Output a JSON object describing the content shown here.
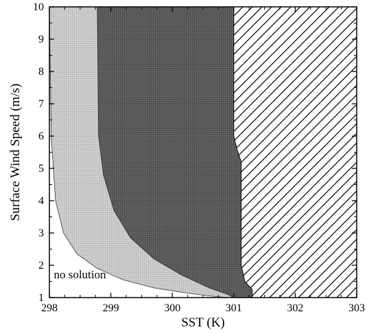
{
  "chart_data": {
    "type": "area",
    "xlabel": "SST (K)",
    "ylabel": "Surface Wind Speed (m/s)",
    "xlim": [
      298,
      303
    ],
    "ylim": [
      1,
      10
    ],
    "x_ticks": [
      "298",
      "299",
      "300",
      "301",
      "302",
      "303"
    ],
    "y_ticks": [
      "1",
      "2",
      "3",
      "4",
      "5",
      "6",
      "7",
      "8",
      "9",
      "10"
    ],
    "grid": false,
    "annotations": [
      {
        "text": "no solution",
        "x": 298.05,
        "y": 1.6
      }
    ],
    "regions": [
      {
        "id": "light-gray",
        "fill": "#c6c6c6",
        "x": [
          298.0,
          298.03,
          298.1,
          298.23,
          298.45,
          298.78,
          299.2,
          299.7,
          300.2,
          300.6,
          300.9
        ],
        "y": [
          10.0,
          6.0,
          4.0,
          3.0,
          2.35,
          1.9,
          1.55,
          1.3,
          1.15,
          1.05,
          1.0
        ]
      },
      {
        "id": "dark-gray",
        "fill": "#5c5c5c",
        "x": [
          298.78,
          298.8,
          298.88,
          299.05,
          299.32,
          299.7,
          300.15,
          300.6,
          300.9,
          301.0
        ],
        "y": [
          10.0,
          6.0,
          4.8,
          3.7,
          2.85,
          2.2,
          1.7,
          1.3,
          1.1,
          1.0
        ]
      },
      {
        "id": "hatched",
        "fill": "#ffffff",
        "hatch_color": "#000000",
        "boundary_x": [
          301.0,
          301.0,
          301.05,
          301.12,
          301.12,
          301.18,
          301.3,
          301.3
        ],
        "boundary_y": [
          10.0,
          6.0,
          5.6,
          5.2,
          2.0,
          1.5,
          1.25,
          1.0
        ]
      }
    ]
  }
}
